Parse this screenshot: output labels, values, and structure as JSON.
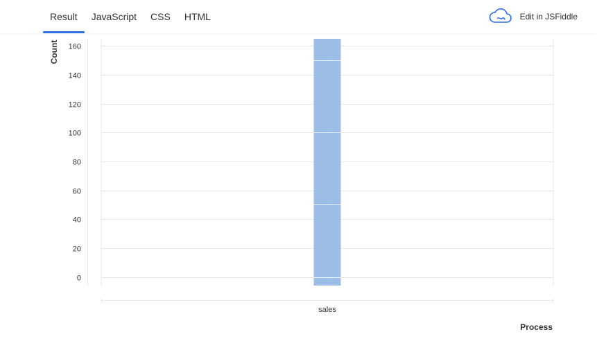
{
  "tabs": [
    {
      "label": "Result",
      "active": true
    },
    {
      "label": "JavaScript",
      "active": false
    },
    {
      "label": "CSS",
      "active": false
    },
    {
      "label": "HTML",
      "active": false
    }
  ],
  "jsfiddle": {
    "label": "Edit in JSFiddle",
    "icon": "cloud-icon"
  },
  "colors": {
    "accent": "#2d6fe4",
    "bar": "#9bbde6",
    "grid": "#e6e6e6",
    "text": "#2f3138"
  },
  "chart_data": {
    "type": "bar",
    "categories": [
      "sales"
    ],
    "series": [
      {
        "values": [
          165
        ]
      }
    ],
    "stack_segments": [
      0,
      50,
      100,
      150
    ],
    "ylabel": "Count",
    "xlabel": "Process",
    "ylim": [
      -6,
      165
    ],
    "y_ticks": [
      0,
      20,
      40,
      60,
      80,
      100,
      120,
      140,
      160
    ],
    "grid": true
  }
}
